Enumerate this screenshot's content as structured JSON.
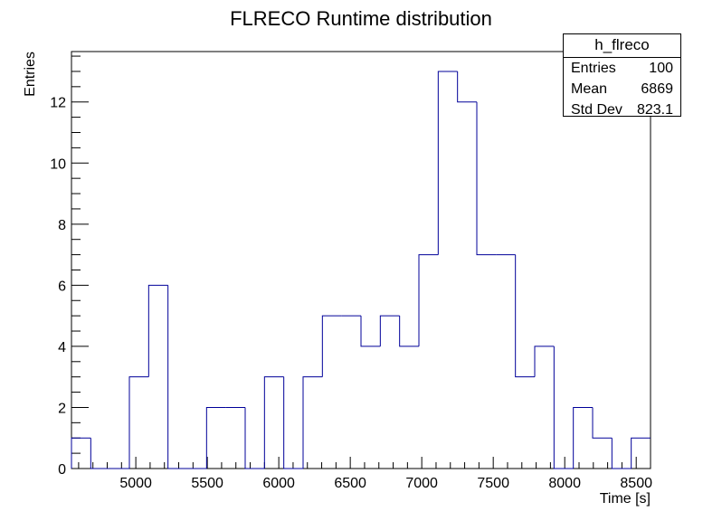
{
  "chart_data": {
    "type": "bar",
    "title": "FLRECO Runtime distribution",
    "xlabel": "Time [s]",
    "ylabel": "Entries",
    "xlim": [
      4550,
      8600
    ],
    "ylim": [
      0,
      13.65
    ],
    "x_ticks": [
      5000,
      5500,
      6000,
      6500,
      7000,
      7500,
      8000,
      8500
    ],
    "y_ticks": [
      0,
      2,
      4,
      6,
      8,
      10,
      12
    ],
    "bin_width": 135,
    "bins": [
      {
        "x_low": 4550,
        "x_high": 4685,
        "value": 1
      },
      {
        "x_low": 4685,
        "x_high": 4820,
        "value": 0
      },
      {
        "x_low": 4820,
        "x_high": 4955,
        "value": 0
      },
      {
        "x_low": 4955,
        "x_high": 5090,
        "value": 3
      },
      {
        "x_low": 5090,
        "x_high": 5225,
        "value": 6
      },
      {
        "x_low": 5225,
        "x_high": 5360,
        "value": 0
      },
      {
        "x_low": 5360,
        "x_high": 5495,
        "value": 0
      },
      {
        "x_low": 5495,
        "x_high": 5630,
        "value": 2
      },
      {
        "x_low": 5630,
        "x_high": 5765,
        "value": 2
      },
      {
        "x_low": 5765,
        "x_high": 5900,
        "value": 0
      },
      {
        "x_low": 5900,
        "x_high": 6035,
        "value": 3
      },
      {
        "x_low": 6035,
        "x_high": 6170,
        "value": 0
      },
      {
        "x_low": 6170,
        "x_high": 6305,
        "value": 3
      },
      {
        "x_low": 6305,
        "x_high": 6440,
        "value": 5
      },
      {
        "x_low": 6440,
        "x_high": 6575,
        "value": 5
      },
      {
        "x_low": 6575,
        "x_high": 6710,
        "value": 4
      },
      {
        "x_low": 6710,
        "x_high": 6845,
        "value": 5
      },
      {
        "x_low": 6845,
        "x_high": 6980,
        "value": 4
      },
      {
        "x_low": 6980,
        "x_high": 7115,
        "value": 7
      },
      {
        "x_low": 7115,
        "x_high": 7250,
        "value": 13
      },
      {
        "x_low": 7250,
        "x_high": 7385,
        "value": 12
      },
      {
        "x_low": 7385,
        "x_high": 7520,
        "value": 7
      },
      {
        "x_low": 7520,
        "x_high": 7655,
        "value": 7
      },
      {
        "x_low": 7655,
        "x_high": 7790,
        "value": 3
      },
      {
        "x_low": 7790,
        "x_high": 7925,
        "value": 4
      },
      {
        "x_low": 7925,
        "x_high": 8060,
        "value": 0
      },
      {
        "x_low": 8060,
        "x_high": 8195,
        "value": 2
      },
      {
        "x_low": 8195,
        "x_high": 8330,
        "value": 1
      },
      {
        "x_low": 8330,
        "x_high": 8465,
        "value": 0
      },
      {
        "x_low": 8465,
        "x_high": 8600,
        "value": 1
      }
    ],
    "line_color": "#000099",
    "grid": false,
    "legend": "none"
  },
  "stats": {
    "name": "h_flreco",
    "rows": [
      {
        "key": "Entries",
        "value": "100"
      },
      {
        "key": "Mean",
        "value": "6869"
      },
      {
        "key": "Std Dev",
        "value": "823.1"
      }
    ]
  }
}
